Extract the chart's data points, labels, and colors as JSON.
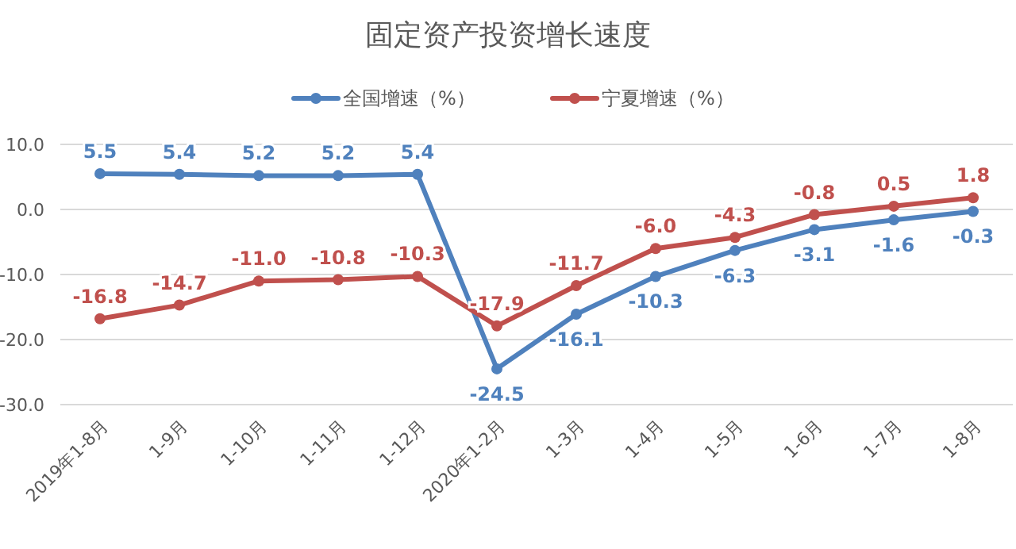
{
  "chart_data": {
    "type": "line",
    "title": "固定资产投资增长速度",
    "categories": [
      "2019年1-8月",
      "1-9月",
      "1-10月",
      "1-11月",
      "1-12月",
      "2020年1-2月",
      "1-3月",
      "1-4月",
      "1-5月",
      "1-6月",
      "1-7月",
      "1-8月"
    ],
    "series": [
      {
        "name": "全国增速（%）",
        "color": "#4f81bd",
        "values": [
          5.5,
          5.4,
          5.2,
          5.2,
          5.4,
          -24.5,
          -16.1,
          -10.3,
          -6.3,
          -3.1,
          -1.6,
          -0.3
        ],
        "value_labels": [
          "5.5",
          "5.4",
          "5.2",
          "5.2",
          "5.4",
          "-24.5",
          "-16.1",
          "-10.3",
          "-6.3",
          "-3.1",
          "-1.6",
          "-0.3"
        ]
      },
      {
        "name": "宁夏增速（%）",
        "color": "#c0504d",
        "values": [
          -16.8,
          -14.7,
          -11.0,
          -10.8,
          -10.3,
          -17.9,
          -11.7,
          -6.0,
          -4.3,
          -0.8,
          0.5,
          1.8
        ],
        "value_labels": [
          "-16.8",
          "-14.7",
          "-11.0",
          "-10.8",
          "-10.3",
          "-17.9",
          "-11.7",
          "-6.0",
          "-4.3",
          "-0.8",
          "0.5",
          "1.8"
        ]
      }
    ],
    "ylim": [
      -30,
      10
    ],
    "yticks": [
      {
        "value": -30,
        "label": "-30.0"
      },
      {
        "value": -20,
        "label": "-20.0"
      },
      {
        "value": -10,
        "label": "-10.0"
      },
      {
        "value": 0,
        "label": "0.0"
      },
      {
        "value": 10,
        "label": "10.0"
      }
    ],
    "grid": "y",
    "legend": "top",
    "marker": "circle"
  }
}
